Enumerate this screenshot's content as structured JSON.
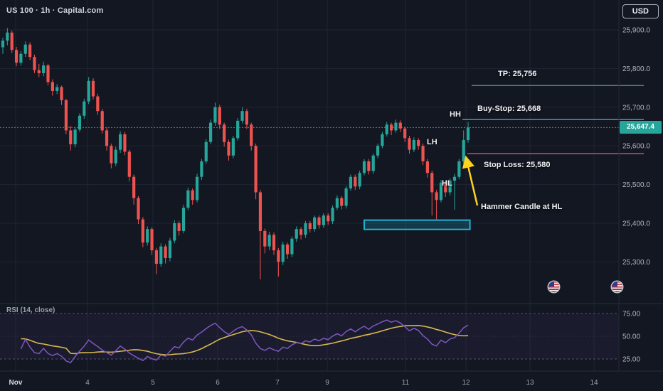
{
  "header": {
    "symbol_title": "US 100 · 1h · Capital.com",
    "currency_button": "USD"
  },
  "colors": {
    "background": "#131722",
    "grid": "#1e2433",
    "up": "#26a69a",
    "down": "#ef5350",
    "rsi_line": "#7e57c2",
    "rsi_ma": "#d9b84f",
    "axis_text": "#b2b5be",
    "current_price": "#26a69a",
    "tp_line": "#4b8f5f",
    "buy_stop_line": "#3aa4dc",
    "stop_loss_line": "#e14c7d",
    "support_box": "#1fb3d3",
    "arrow": "#ffd21e"
  },
  "annotations": {
    "tp": {
      "label": "TP: 25,756",
      "price": 25756,
      "color": "#4b8f5f"
    },
    "buy_stop": {
      "label": "Buy-Stop: 25,668",
      "price": 25668,
      "color": "#3aa4dc"
    },
    "stop_loss": {
      "label": "Stop Loss: 25,580",
      "price": 25580,
      "color": "#e14c7d"
    },
    "structure": {
      "hh": "HH",
      "lh": "LH",
      "hl": "HL"
    },
    "hammer_note": {
      "text": "Hammer Candle at HL",
      "color": "#ffd21e"
    },
    "support_box": {
      "start_index": 80,
      "end_index": 103.4,
      "top_price": 25408,
      "bottom_price": 25384,
      "color": "#1fb3d3"
    },
    "current_price": {
      "value": "25,647.4",
      "price": 25647.4
    }
  },
  "event_markers": [
    {
      "icon": "us-flag"
    },
    {
      "icon": "us-flag"
    }
  ],
  "chart_data": {
    "type": "candlestick",
    "symbol": "US 100",
    "interval": "1h",
    "provider": "Capital.com",
    "title": "US 100 · 1h · Capital.com",
    "last_price": 25647.4,
    "price_axis_ticks": [
      25900,
      25800,
      25700,
      25600,
      25500,
      25400,
      25300
    ],
    "price_axis_labels": [
      "25,900.0",
      "25,800.0",
      "25,700.0",
      "25,600.0",
      "25,500.0",
      "25,400.0",
      "25,300.0"
    ],
    "time_axis": [
      "Nov",
      "4",
      "5",
      "6",
      "7",
      "9",
      "11",
      "12",
      "13",
      "14"
    ],
    "indicator": {
      "type": "rsi",
      "label": "RSI (14, close)",
      "period": 14,
      "source": "close",
      "levels": [
        75,
        50,
        25
      ],
      "level_labels": [
        "75.00",
        "50.00",
        "25.00"
      ]
    },
    "candles": [
      [
        25855,
        25880,
        25838,
        25872
      ],
      [
        25872,
        25905,
        25860,
        25893
      ],
      [
        25893,
        25898,
        25840,
        25848
      ],
      [
        25848,
        25856,
        25806,
        25815
      ],
      [
        25815,
        25845,
        25808,
        25838
      ],
      [
        25838,
        25870,
        25830,
        25862
      ],
      [
        25862,
        25868,
        25822,
        25830
      ],
      [
        25830,
        25836,
        25788,
        25796
      ],
      [
        25796,
        25812,
        25778,
        25788
      ],
      [
        25788,
        25818,
        25780,
        25808
      ],
      [
        25808,
        25812,
        25756,
        25765
      ],
      [
        25765,
        25772,
        25730,
        25742
      ],
      [
        25742,
        25760,
        25734,
        25752
      ],
      [
        25752,
        25756,
        25706,
        25718
      ],
      [
        25718,
        25722,
        25630,
        25640
      ],
      [
        25640,
        25652,
        25588,
        25604
      ],
      [
        25604,
        25648,
        25596,
        25642
      ],
      [
        25642,
        25684,
        25636,
        25678
      ],
      [
        25678,
        25722,
        25670,
        25715
      ],
      [
        25715,
        25778,
        25708,
        25768
      ],
      [
        25768,
        25775,
        25720,
        25728
      ],
      [
        25728,
        25735,
        25680,
        25690
      ],
      [
        25690,
        25696,
        25632,
        25640
      ],
      [
        25640,
        25648,
        25588,
        25600
      ],
      [
        25600,
        25606,
        25542,
        25555
      ],
      [
        25555,
        25598,
        25548,
        25590
      ],
      [
        25590,
        25638,
        25582,
        25630
      ],
      [
        25630,
        25636,
        25576,
        25585
      ],
      [
        25585,
        25590,
        25508,
        25520
      ],
      [
        25520,
        25526,
        25448,
        25465
      ],
      [
        25465,
        25470,
        25398,
        25410
      ],
      [
        25410,
        25416,
        25338,
        25350
      ],
      [
        25350,
        25392,
        25342,
        25385
      ],
      [
        25385,
        25390,
        25318,
        25330
      ],
      [
        25330,
        25336,
        25268,
        25295
      ],
      [
        25295,
        25348,
        25288,
        25340
      ],
      [
        25340,
        25346,
        25296,
        25310
      ],
      [
        25310,
        25362,
        25302,
        25355
      ],
      [
        25355,
        25408,
        25348,
        25400
      ],
      [
        25400,
        25406,
        25368,
        25380
      ],
      [
        25380,
        25448,
        25374,
        25440
      ],
      [
        25440,
        25492,
        25434,
        25485
      ],
      [
        25485,
        25490,
        25448,
        25460
      ],
      [
        25460,
        25528,
        25454,
        25520
      ],
      [
        25520,
        25566,
        25512,
        25560
      ],
      [
        25560,
        25618,
        25554,
        25610
      ],
      [
        25610,
        25668,
        25604,
        25660
      ],
      [
        25660,
        25712,
        25652,
        25700
      ],
      [
        25700,
        25706,
        25644,
        25655
      ],
      [
        25655,
        25660,
        25598,
        25610
      ],
      [
        25610,
        25616,
        25562,
        25575
      ],
      [
        25575,
        25626,
        25568,
        25620
      ],
      [
        25620,
        25672,
        25614,
        25665
      ],
      [
        25665,
        25700,
        25658,
        25690
      ],
      [
        25690,
        25696,
        25644,
        25655
      ],
      [
        25655,
        25660,
        25588,
        25600
      ],
      [
        25600,
        25606,
        25462,
        25480
      ],
      [
        25480,
        25486,
        25255,
        25380
      ],
      [
        25380,
        25386,
        25322,
        25340
      ],
      [
        25340,
        25378,
        25330,
        25370
      ],
      [
        25370,
        25376,
        25318,
        25330
      ],
      [
        25330,
        25336,
        25262,
        25300
      ],
      [
        25300,
        25352,
        25292,
        25345
      ],
      [
        25345,
        25350,
        25308,
        25320
      ],
      [
        25320,
        25366,
        25312,
        25360
      ],
      [
        25360,
        25392,
        25352,
        25385
      ],
      [
        25385,
        25390,
        25358,
        25370
      ],
      [
        25370,
        25406,
        25362,
        25400
      ],
      [
        25400,
        25406,
        25376,
        25385
      ],
      [
        25385,
        25420,
        25378,
        25415
      ],
      [
        25415,
        25420,
        25386,
        25395
      ],
      [
        25395,
        25426,
        25388,
        25420
      ],
      [
        25420,
        25426,
        25396,
        25405
      ],
      [
        25405,
        25446,
        25398,
        25440
      ],
      [
        25440,
        25472,
        25434,
        25465
      ],
      [
        25465,
        25470,
        25436,
        25445
      ],
      [
        25445,
        25496,
        25438,
        25490
      ],
      [
        25490,
        25526,
        25484,
        25520
      ],
      [
        25520,
        25526,
        25486,
        25495
      ],
      [
        25495,
        25536,
        25488,
        25530
      ],
      [
        25530,
        25566,
        25524,
        25560
      ],
      [
        25560,
        25566,
        25526,
        25535
      ],
      [
        25535,
        25580,
        25528,
        25575
      ],
      [
        25575,
        25606,
        25568,
        25600
      ],
      [
        25600,
        25636,
        25594,
        25630
      ],
      [
        25630,
        25662,
        25624,
        25655
      ],
      [
        25655,
        25660,
        25628,
        25640
      ],
      [
        25640,
        25668,
        25634,
        25660
      ],
      [
        25660,
        25666,
        25636,
        25645
      ],
      [
        25645,
        25650,
        25610,
        25620
      ],
      [
        25620,
        25626,
        25580,
        25590
      ],
      [
        25590,
        25622,
        25584,
        25615
      ],
      [
        25615,
        25620,
        25590,
        25600
      ],
      [
        25600,
        25606,
        25550,
        25560
      ],
      [
        25560,
        25566,
        25518,
        25530
      ],
      [
        25530,
        25536,
        25420,
        25480
      ],
      [
        25480,
        25486,
        25410,
        25460
      ],
      [
        25460,
        25512,
        25454,
        25505
      ],
      [
        25505,
        25510,
        25468,
        25480
      ],
      [
        25480,
        25516,
        25472,
        25510
      ],
      [
        25510,
        25528,
        25435,
        25520
      ],
      [
        25520,
        25566,
        25514,
        25560
      ],
      [
        25560,
        25640,
        25554,
        25615
      ],
      [
        25615,
        25662,
        25608,
        25647.4
      ]
    ]
  }
}
